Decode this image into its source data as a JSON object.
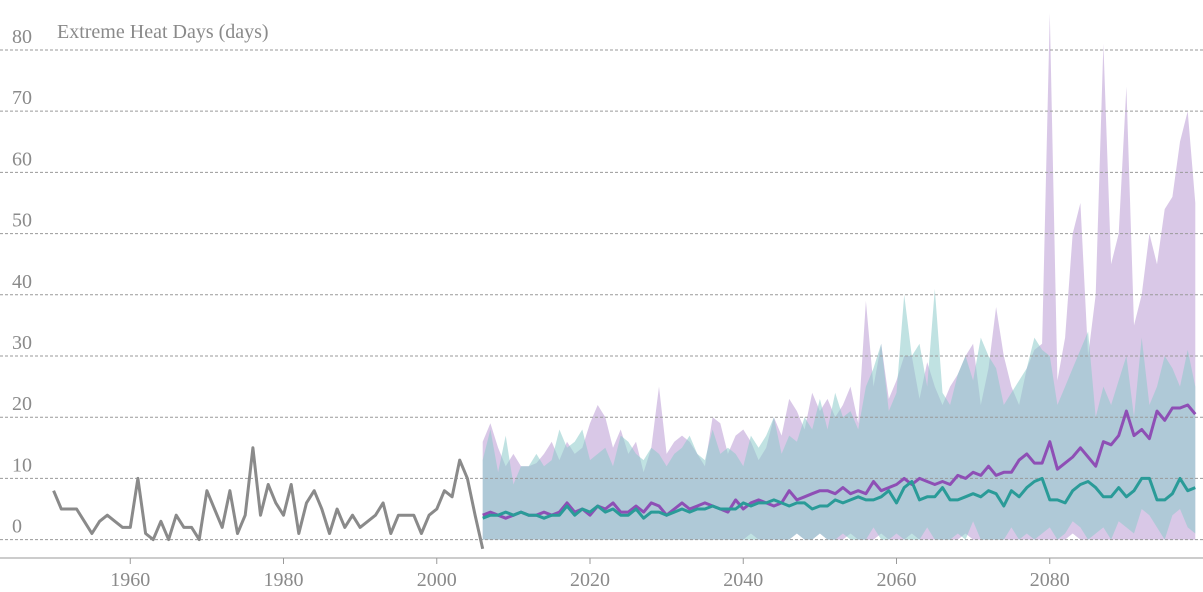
{
  "chart_data": {
    "type": "line",
    "title": "Extreme Heat Days (days)",
    "xlim": [
      1943,
      2100
    ],
    "ylim": [
      -3,
      88
    ],
    "xticks": [
      1960,
      1980,
      2000,
      2020,
      2040,
      2060,
      2080
    ],
    "yticks": [
      0,
      10,
      20,
      30,
      40,
      50,
      60,
      70,
      80
    ],
    "grid": true,
    "series": [
      {
        "color": "#8a8a8a",
        "x": [
          1950,
          1951,
          1952,
          1953,
          1954,
          1955,
          1956,
          1957,
          1958,
          1959,
          1960,
          1961,
          1962,
          1963,
          1964,
          1965,
          1966,
          1967,
          1968,
          1969,
          1970,
          1971,
          1972,
          1973,
          1974,
          1975,
          1976,
          1977,
          1978,
          1979,
          1980,
          1981,
          1982,
          1983,
          1984,
          1985,
          1986,
          1987,
          1988,
          1989,
          1990,
          1991,
          1992,
          1993,
          1994,
          1995,
          1996,
          1997,
          1998,
          1999,
          2000,
          2001,
          2002,
          2003,
          2004,
          2005,
          2006
        ],
        "values": [
          8,
          5,
          5,
          5,
          3,
          1,
          3,
          4,
          3,
          2,
          2,
          10,
          1,
          0,
          3,
          0,
          4,
          2,
          2,
          0,
          8,
          5,
          2,
          8,
          1,
          4,
          15,
          4,
          9,
          6,
          4,
          9,
          1,
          6,
          8,
          5,
          1,
          5,
          2,
          4,
          2,
          3,
          4,
          6,
          1,
          4,
          4,
          4,
          1,
          4,
          5,
          8,
          7,
          13,
          10,
          4,
          -1.5
        ]
      },
      {
        "color": "#8e4fb5",
        "band_color": "#b99bd3",
        "x": [
          2006,
          2007,
          2008,
          2009,
          2010,
          2011,
          2012,
          2013,
          2014,
          2015,
          2016,
          2017,
          2018,
          2019,
          2020,
          2021,
          2022,
          2023,
          2024,
          2025,
          2026,
          2027,
          2028,
          2029,
          2030,
          2031,
          2032,
          2033,
          2034,
          2035,
          2036,
          2037,
          2038,
          2039,
          2040,
          2041,
          2042,
          2043,
          2044,
          2045,
          2046,
          2047,
          2048,
          2049,
          2050,
          2051,
          2052,
          2053,
          2054,
          2055,
          2056,
          2057,
          2058,
          2059,
          2060,
          2061,
          2062,
          2063,
          2064,
          2065,
          2066,
          2067,
          2068,
          2069,
          2070,
          2071,
          2072,
          2073,
          2074,
          2075,
          2076,
          2077,
          2078,
          2079,
          2080,
          2081,
          2082,
          2083,
          2084,
          2085,
          2086,
          2087,
          2088,
          2089,
          2090,
          2091,
          2092,
          2093,
          2094,
          2095,
          2096,
          2097,
          2098,
          2099
        ],
        "values": [
          4,
          4.5,
          4,
          3.5,
          4,
          4.5,
          4,
          4,
          4.5,
          4,
          4.5,
          6,
          4.5,
          5,
          4,
          5.5,
          5,
          6,
          4.5,
          4.5,
          5.5,
          4.5,
          6,
          5.5,
          4,
          5,
          6,
          5,
          5.5,
          6,
          5.5,
          5,
          4.5,
          6.5,
          5,
          6,
          6.5,
          6,
          5.5,
          6,
          8,
          6.5,
          7,
          7.5,
          8,
          8,
          7.5,
          8.5,
          7.5,
          8,
          7.5,
          9.5,
          8,
          8.5,
          9,
          10,
          9,
          10,
          9.5,
          9,
          9.5,
          9,
          10.5,
          10,
          11,
          10.5,
          12,
          10.5,
          11,
          11,
          13,
          14,
          12.5,
          12.5,
          16,
          11.5,
          12.5,
          13.5,
          15,
          13.5,
          12,
          16,
          15.5,
          17,
          21,
          17,
          18,
          16.5,
          21,
          19.5,
          21.5,
          21.5,
          22,
          20.5
        ],
        "upper": [
          16,
          19,
          15,
          12,
          14,
          12,
          12,
          12.5,
          14,
          16,
          13,
          16,
          14,
          15,
          19,
          22,
          20,
          15,
          18,
          14,
          16,
          11,
          15,
          25,
          14,
          16,
          17,
          16,
          14,
          12,
          20,
          19,
          14,
          17,
          18,
          16,
          13,
          15,
          20,
          17,
          23,
          21,
          18,
          24,
          21,
          23,
          20,
          22,
          25,
          19,
          39,
          25,
          32,
          23,
          26,
          30,
          30,
          23,
          29,
          25,
          22,
          25,
          27,
          30,
          32,
          22,
          28,
          38,
          30,
          25,
          22,
          28,
          31,
          32,
          86,
          26,
          33,
          50,
          55,
          30,
          40,
          81,
          45,
          50,
          74,
          35,
          40,
          50,
          45,
          54,
          56,
          65,
          70,
          55
        ],
        "lower": [
          0,
          0,
          0,
          0,
          0,
          0,
          0,
          0,
          0,
          0,
          0,
          0,
          0,
          0,
          0,
          0,
          0,
          0,
          0,
          0,
          0,
          0,
          0,
          0,
          0,
          0,
          0,
          0,
          0,
          0,
          0,
          0,
          0,
          0,
          0,
          1,
          0,
          0,
          0,
          0,
          0,
          1,
          0,
          0,
          1,
          0,
          0,
          0,
          1,
          0,
          0,
          0,
          1,
          0,
          0,
          0,
          1,
          0,
          0,
          0,
          0,
          0,
          0,
          1,
          0,
          0,
          0,
          0,
          0,
          0,
          0,
          0,
          0,
          0,
          0,
          0,
          0,
          1,
          0,
          0,
          0,
          0,
          0,
          0,
          0,
          0,
          0,
          0,
          0,
          0,
          0,
          0,
          0,
          0
        ]
      },
      {
        "color": "#2a9b98",
        "band_color": "#8ccaca",
        "x": [
          2006,
          2007,
          2008,
          2009,
          2010,
          2011,
          2012,
          2013,
          2014,
          2015,
          2016,
          2017,
          2018,
          2019,
          2020,
          2021,
          2022,
          2023,
          2024,
          2025,
          2026,
          2027,
          2028,
          2029,
          2030,
          2031,
          2032,
          2033,
          2034,
          2035,
          2036,
          2037,
          2038,
          2039,
          2040,
          2041,
          2042,
          2043,
          2044,
          2045,
          2046,
          2047,
          2048,
          2049,
          2050,
          2051,
          2052,
          2053,
          2054,
          2055,
          2056,
          2057,
          2058,
          2059,
          2060,
          2061,
          2062,
          2063,
          2064,
          2065,
          2066,
          2067,
          2068,
          2069,
          2070,
          2071,
          2072,
          2073,
          2074,
          2075,
          2076,
          2077,
          2078,
          2079,
          2080,
          2081,
          2082,
          2083,
          2084,
          2085,
          2086,
          2087,
          2088,
          2089,
          2090,
          2091,
          2092,
          2093,
          2094,
          2095,
          2096,
          2097,
          2098,
          2099
        ],
        "values": [
          3.5,
          4,
          4,
          4.5,
          4,
          4.5,
          4,
          4,
          3.5,
          4,
          4,
          5.5,
          4,
          5,
          4.5,
          5.5,
          4.5,
          5,
          4,
          4,
          5,
          3.5,
          4.5,
          4.5,
          4,
          4.5,
          5,
          4.5,
          5,
          5,
          5.5,
          5,
          5,
          5,
          6,
          5.5,
          6,
          6,
          6.5,
          6,
          5.5,
          6,
          6,
          5,
          5.5,
          5.5,
          6.5,
          6,
          6.5,
          7,
          6.5,
          6.5,
          7,
          8,
          6,
          8.5,
          9.5,
          6.5,
          7,
          7,
          8.5,
          6.5,
          6.5,
          7,
          7.5,
          7,
          8,
          7.5,
          5.5,
          8,
          7,
          8.5,
          9.5,
          10,
          6.5,
          6.5,
          6,
          8,
          9,
          9.5,
          8.5,
          7,
          7,
          8.5,
          7,
          8,
          10,
          10,
          6.5,
          6.5,
          7.5,
          10,
          8,
          8.5
        ],
        "upper": [
          13,
          18,
          11,
          17,
          9,
          12,
          12,
          14,
          12,
          13,
          18,
          15,
          16,
          18,
          13,
          14,
          15,
          12,
          17,
          16,
          14,
          13,
          15,
          14,
          12,
          14,
          15,
          17,
          14,
          13,
          18,
          14,
          15,
          14,
          12,
          17,
          15,
          17,
          20,
          14,
          17,
          16,
          20,
          18,
          23,
          18,
          24,
          20,
          21,
          18,
          25,
          28,
          32,
          21,
          24,
          40,
          30,
          32,
          25,
          41,
          24,
          22,
          27,
          30,
          26,
          33,
          30,
          28,
          22,
          24,
          26,
          28,
          33,
          31,
          30,
          22,
          25,
          28,
          31,
          34,
          20,
          25,
          22,
          26,
          30,
          20,
          33,
          22,
          25,
          30,
          28,
          25,
          31,
          25
        ],
        "lower": [
          0,
          0,
          0,
          0,
          0,
          0,
          0,
          0,
          0,
          0,
          0,
          0,
          0,
          0,
          0,
          0,
          0,
          0,
          0,
          0,
          0,
          0,
          0,
          0,
          0,
          0,
          0,
          0,
          0,
          0,
          0,
          0,
          0,
          0,
          0,
          0,
          0,
          0,
          0,
          0,
          0,
          1,
          0,
          0,
          1,
          0,
          0,
          1,
          0,
          0,
          0,
          2,
          0,
          0,
          1,
          0,
          0,
          0,
          2,
          0,
          0,
          0,
          1,
          0,
          3,
          0,
          0,
          0,
          0,
          2,
          0,
          1,
          0,
          1,
          2,
          0,
          1,
          3,
          2,
          0,
          1,
          2,
          0,
          3,
          2,
          1,
          5,
          4,
          2,
          0,
          4,
          5,
          2,
          1
        ]
      }
    ]
  }
}
